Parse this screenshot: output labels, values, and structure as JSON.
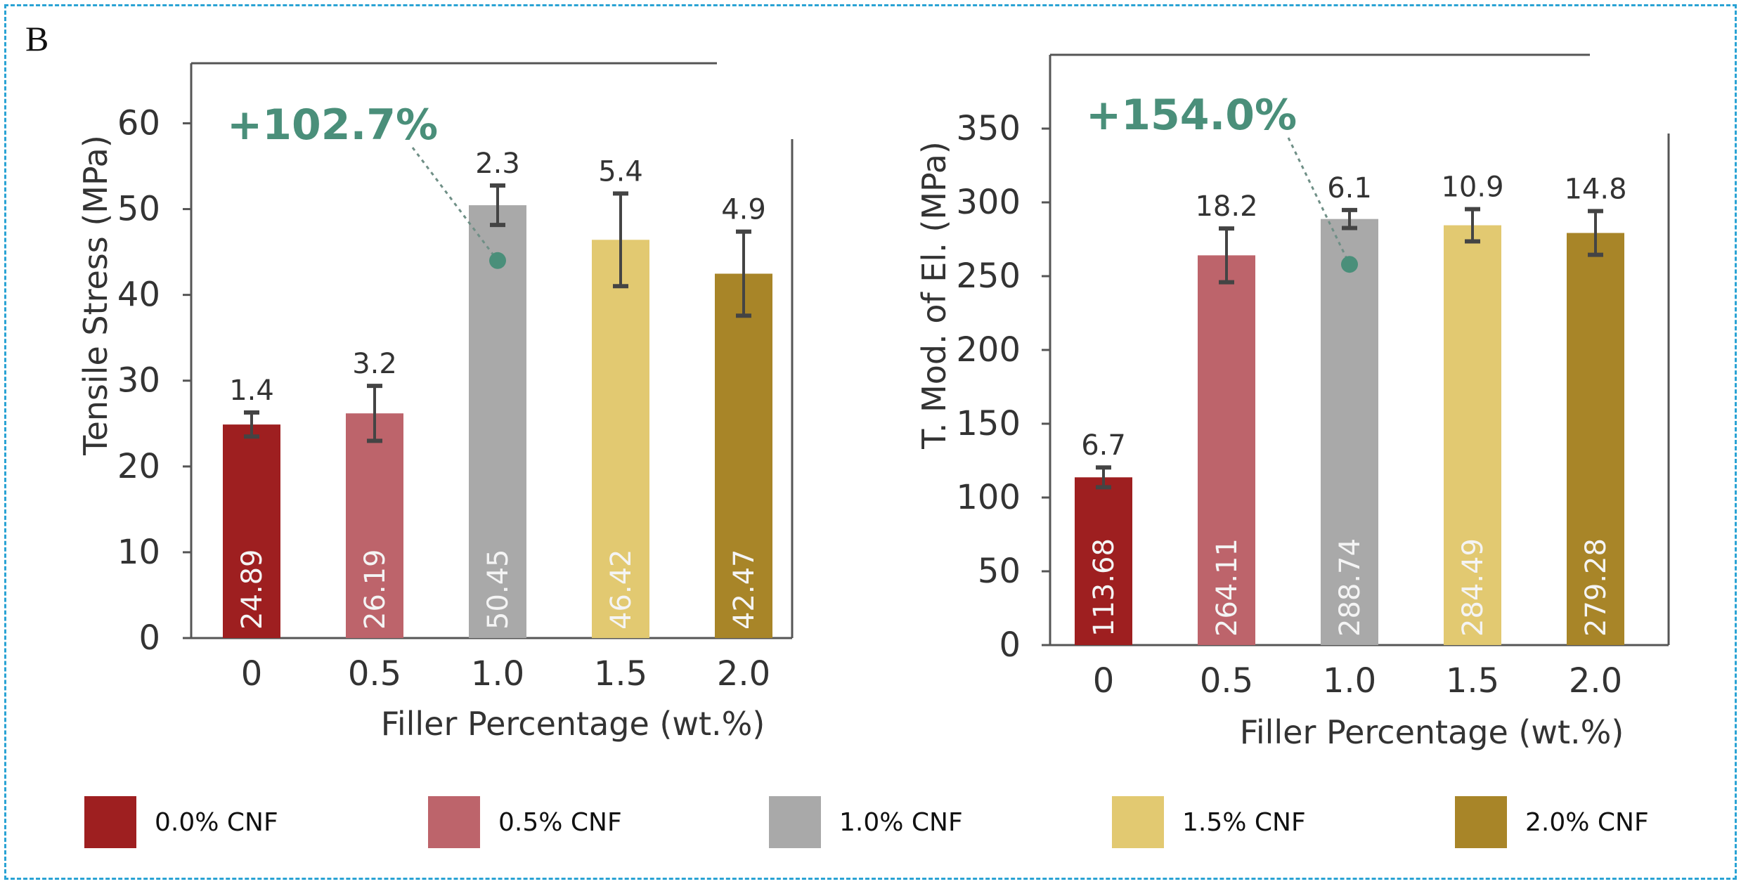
{
  "panel_label": "B",
  "colors": {
    "frame": "#2aa3d4",
    "axis": "#555555",
    "annotation": "#4a8f7a",
    "series": [
      "#9e1f20",
      "#bd646b",
      "#a9a9a9",
      "#e2c971",
      "#a88528"
    ]
  },
  "chart_data": [
    {
      "type": "bar",
      "title": "",
      "xlabel": "Filler Percentage (wt.%)",
      "ylabel": "Tensile Stress (MPa)",
      "categories": [
        "0",
        "0.5",
        "1.0",
        "1.5",
        "2.0"
      ],
      "values": [
        24.89,
        26.19,
        50.45,
        46.42,
        42.47
      ],
      "value_labels": [
        "24.89",
        "26.19",
        "50.45",
        "46.42",
        "42.47"
      ],
      "errors": [
        1.4,
        3.2,
        2.3,
        5.4,
        4.9
      ],
      "error_labels": [
        "1.4",
        "3.2",
        "2.3",
        "5.4",
        "4.9"
      ],
      "ylim": [
        0,
        67
      ],
      "yticks": [
        0,
        10,
        20,
        30,
        40,
        50,
        60
      ],
      "ytick_labels": [
        "0",
        "10",
        "20",
        "30",
        "40",
        "50",
        "60"
      ],
      "annotation": {
        "text": "+102.7%",
        "marker_category": "1.0",
        "marker_value": 44
      }
    },
    {
      "type": "bar",
      "title": "",
      "xlabel": "Filler Percentage (wt.%)",
      "ylabel": "T. Mod. of El. (MPa)",
      "categories": [
        "0",
        "0.5",
        "1.0",
        "1.5",
        "2.0"
      ],
      "values": [
        113.68,
        264.11,
        288.74,
        284.49,
        279.28
      ],
      "value_labels": [
        "113.68",
        "264.11",
        "288.74",
        "284.49",
        "279.28"
      ],
      "errors": [
        6.7,
        18.2,
        6.1,
        10.9,
        14.8
      ],
      "error_labels": [
        "6.7",
        "18.2",
        "6.1",
        "10.9",
        "14.8"
      ],
      "ylim": [
        0,
        400
      ],
      "yticks": [
        0,
        50,
        100,
        150,
        200,
        250,
        300,
        350
      ],
      "ytick_labels": [
        "0",
        "50",
        "100",
        "150",
        "200",
        "250",
        "300",
        "350"
      ],
      "annotation": {
        "text": "+154.0%",
        "marker_category": "1.0",
        "marker_value": 258
      }
    }
  ],
  "legend": [
    {
      "label": "0.0% CNF",
      "color": "#9e1f20"
    },
    {
      "label": "0.5% CNF",
      "color": "#bd646b"
    },
    {
      "label": "1.0% CNF",
      "color": "#a9a9a9"
    },
    {
      "label": "1.5% CNF",
      "color": "#e2c971"
    },
    {
      "label": "2.0% CNF",
      "color": "#a88528"
    }
  ]
}
